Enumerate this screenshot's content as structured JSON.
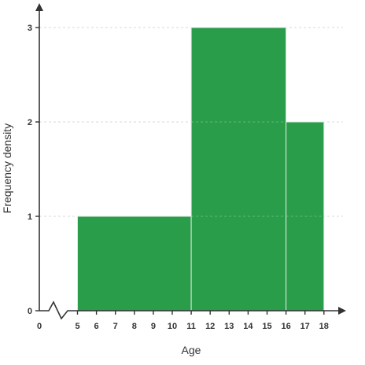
{
  "chart_data": {
    "type": "bar",
    "subtype": "histogram",
    "title": "",
    "xlabel": "Age",
    "ylabel": "Frequency density",
    "x_tick_labels": [
      "0",
      "5",
      "6",
      "7",
      "8",
      "9",
      "10",
      "11",
      "12",
      "13",
      "14",
      "15",
      "16",
      "17",
      "18"
    ],
    "y_tick_labels": [
      "0",
      "1",
      "2",
      "3"
    ],
    "xlim": [
      5,
      18
    ],
    "ylim": [
      0,
      3
    ],
    "axis_break": "x",
    "grid": true,
    "bins": [
      {
        "from": 5,
        "to": 11,
        "frequency_density": 1
      },
      {
        "from": 11,
        "to": 16,
        "frequency_density": 3
      },
      {
        "from": 16,
        "to": 18,
        "frequency_density": 2
      }
    ],
    "bar_color": "#2a9d4a"
  }
}
